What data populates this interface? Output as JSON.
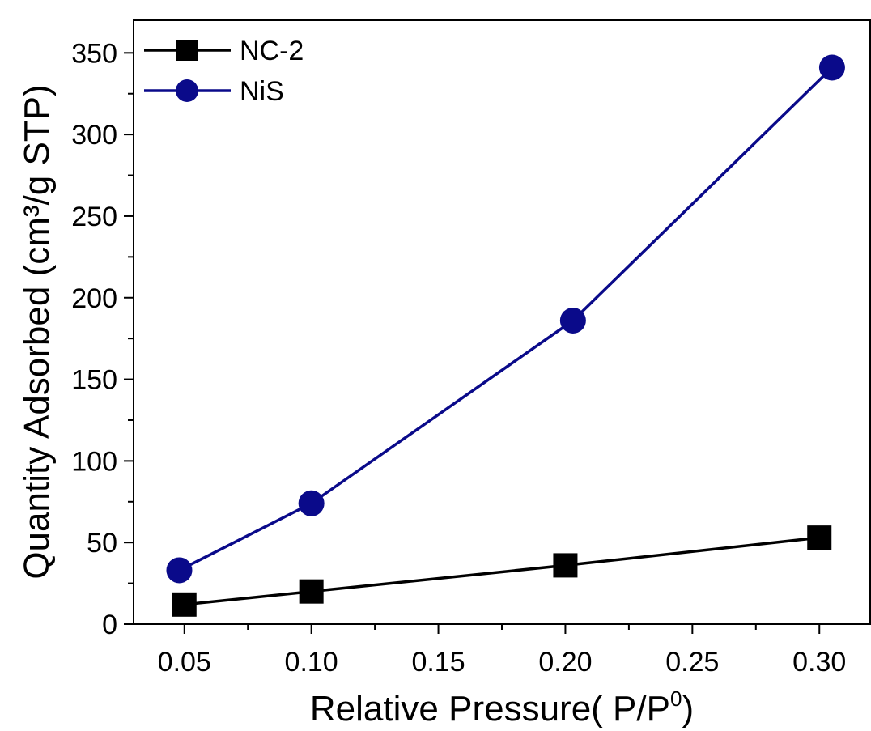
{
  "chart_data": {
    "type": "line",
    "title": "",
    "xlabel": "Relative Pressure( P/P",
    "xlabel_sup": "0",
    "xlabel_suffix": ")",
    "ylabel": "Quantity Adsorbed (cm³/g STP)",
    "xlim": [
      0.03,
      0.32
    ],
    "ylim": [
      0,
      370
    ],
    "xticks": [
      0.05,
      0.1,
      0.15,
      0.2,
      0.25,
      0.3
    ],
    "xtick_labels": [
      "0.05",
      "0.10",
      "0.15",
      "0.20",
      "0.25",
      "0.30"
    ],
    "yticks": [
      0,
      50,
      100,
      150,
      200,
      250,
      300,
      350
    ],
    "ytick_labels": [
      "0",
      "50",
      "100",
      "150",
      "200",
      "250",
      "300",
      "350"
    ],
    "grid": false,
    "legend_position": "top-left",
    "series": [
      {
        "name": "NC-2",
        "marker": "square",
        "color": "#000000",
        "x": [
          0.05,
          0.1,
          0.2,
          0.3
        ],
        "y": [
          12,
          20,
          36,
          53
        ]
      },
      {
        "name": "NiS",
        "marker": "circle",
        "color": "#0a0a8a",
        "x": [
          0.048,
          0.1,
          0.203,
          0.305
        ],
        "y": [
          33,
          74,
          186,
          341
        ]
      }
    ]
  }
}
